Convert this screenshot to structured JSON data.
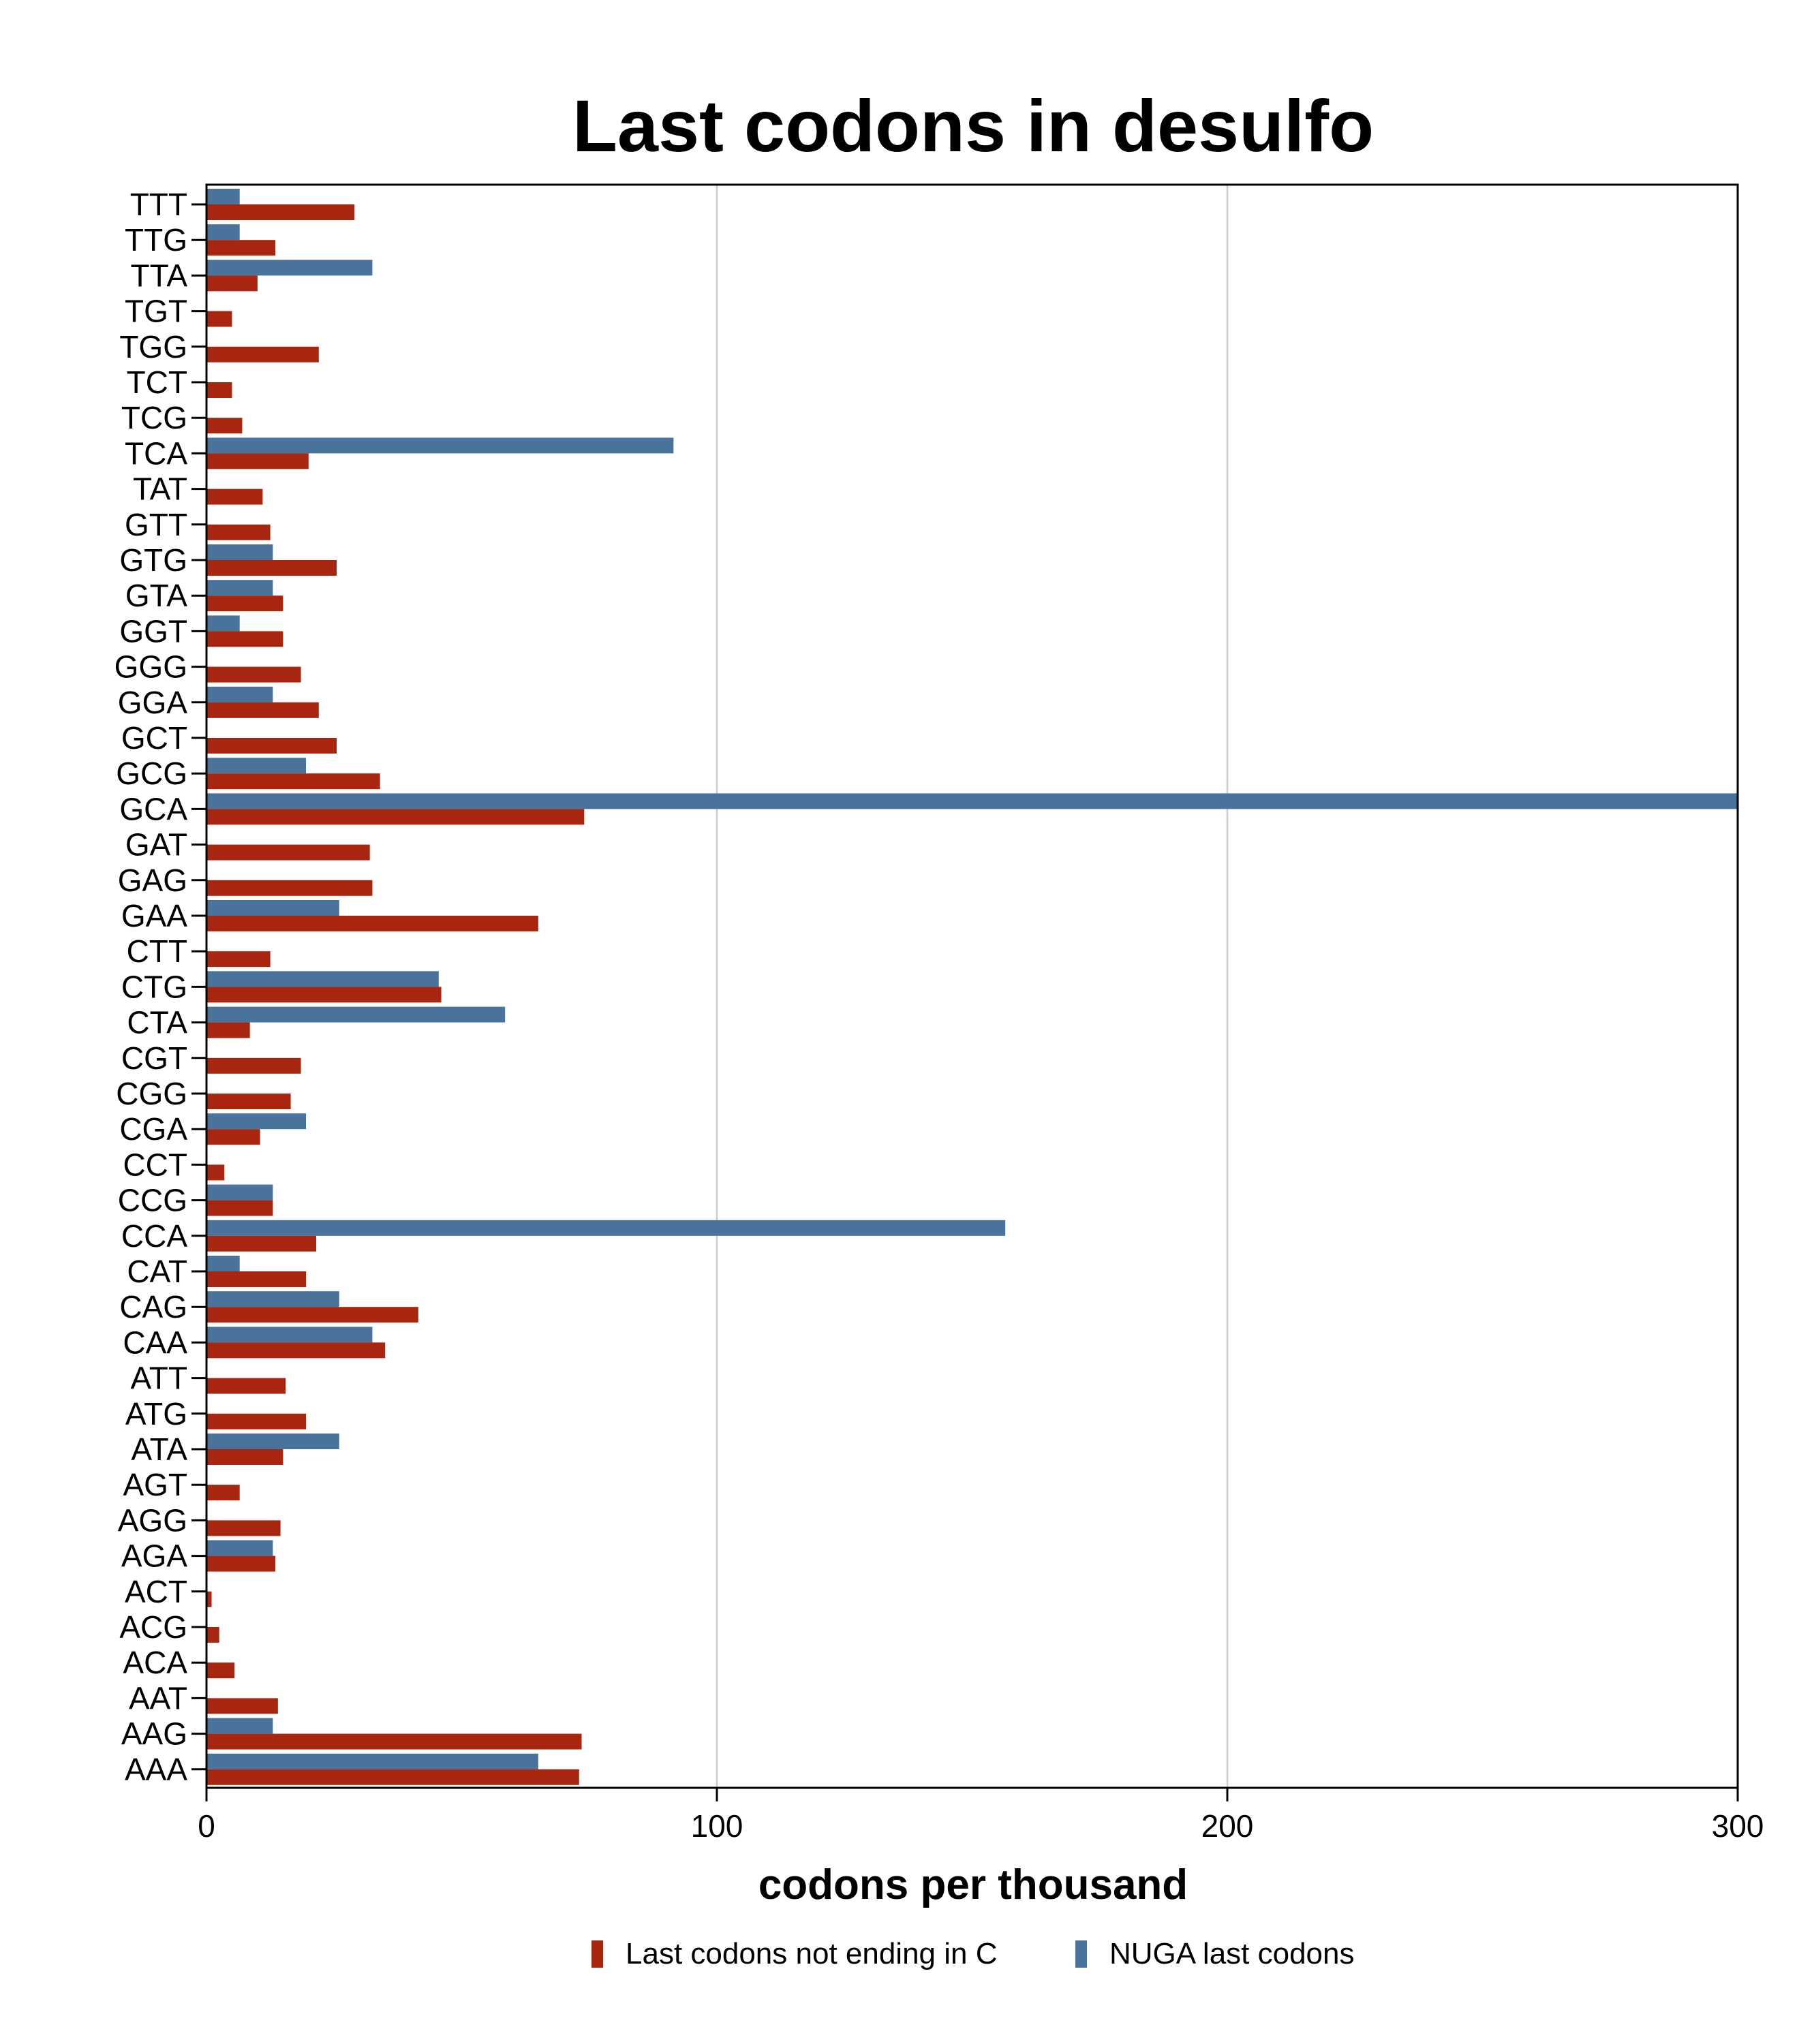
{
  "chart_data": {
    "type": "bar",
    "orientation": "horizontal",
    "title": "Last codons in desulfo",
    "xlabel": "codons per thousand",
    "ylabel": "",
    "xlim": [
      0,
      300
    ],
    "x_ticks": [
      0,
      100,
      200,
      300
    ],
    "grid": "vertical",
    "legend_position": "bottom",
    "categories": [
      "TTT",
      "TTG",
      "TTA",
      "TGT",
      "TGG",
      "TCT",
      "TCG",
      "TCA",
      "TAT",
      "GTT",
      "GTG",
      "GTA",
      "GGT",
      "GGG",
      "GGA",
      "GCT",
      "GCG",
      "GCA",
      "GAT",
      "GAG",
      "GAA",
      "CTT",
      "CTG",
      "CTA",
      "CGT",
      "CGG",
      "CGA",
      "CCT",
      "CCG",
      "CCA",
      "CAT",
      "CAG",
      "CAA",
      "ATT",
      "ATG",
      "ATA",
      "AGT",
      "AGG",
      "AGA",
      "ACT",
      "ACG",
      "ACA",
      "AAT",
      "AAG",
      "AAA"
    ],
    "series": [
      {
        "name": "Last codons not ending in C",
        "color": "#A8260F",
        "values": [
          29,
          13.5,
          10,
          5,
          22,
          5,
          7,
          20,
          11,
          12.5,
          25.5,
          15,
          15,
          18.5,
          22,
          25.5,
          34,
          74,
          32,
          32.5,
          65,
          12.5,
          46,
          8.5,
          18.5,
          16.5,
          10.5,
          3.5,
          13,
          21.5,
          19.5,
          41.5,
          35,
          15.5,
          19.5,
          15,
          6.5,
          14.5,
          13.5,
          1,
          2.5,
          5.5,
          14,
          73.5,
          73
        ]
      },
      {
        "name": "NUGA last codons",
        "color": "#4A739C",
        "values": [
          6.5,
          6.5,
          32.5,
          0,
          0,
          0,
          0,
          91.5,
          0,
          0,
          13,
          13,
          6.5,
          0,
          13,
          0,
          19.5,
          300,
          0,
          0,
          26,
          0,
          45.5,
          58.5,
          0,
          0,
          19.5,
          0,
          13,
          156.5,
          6.5,
          26,
          32.5,
          0,
          0,
          26,
          0,
          0,
          13,
          0,
          0,
          0,
          0,
          13,
          65
        ]
      }
    ]
  }
}
